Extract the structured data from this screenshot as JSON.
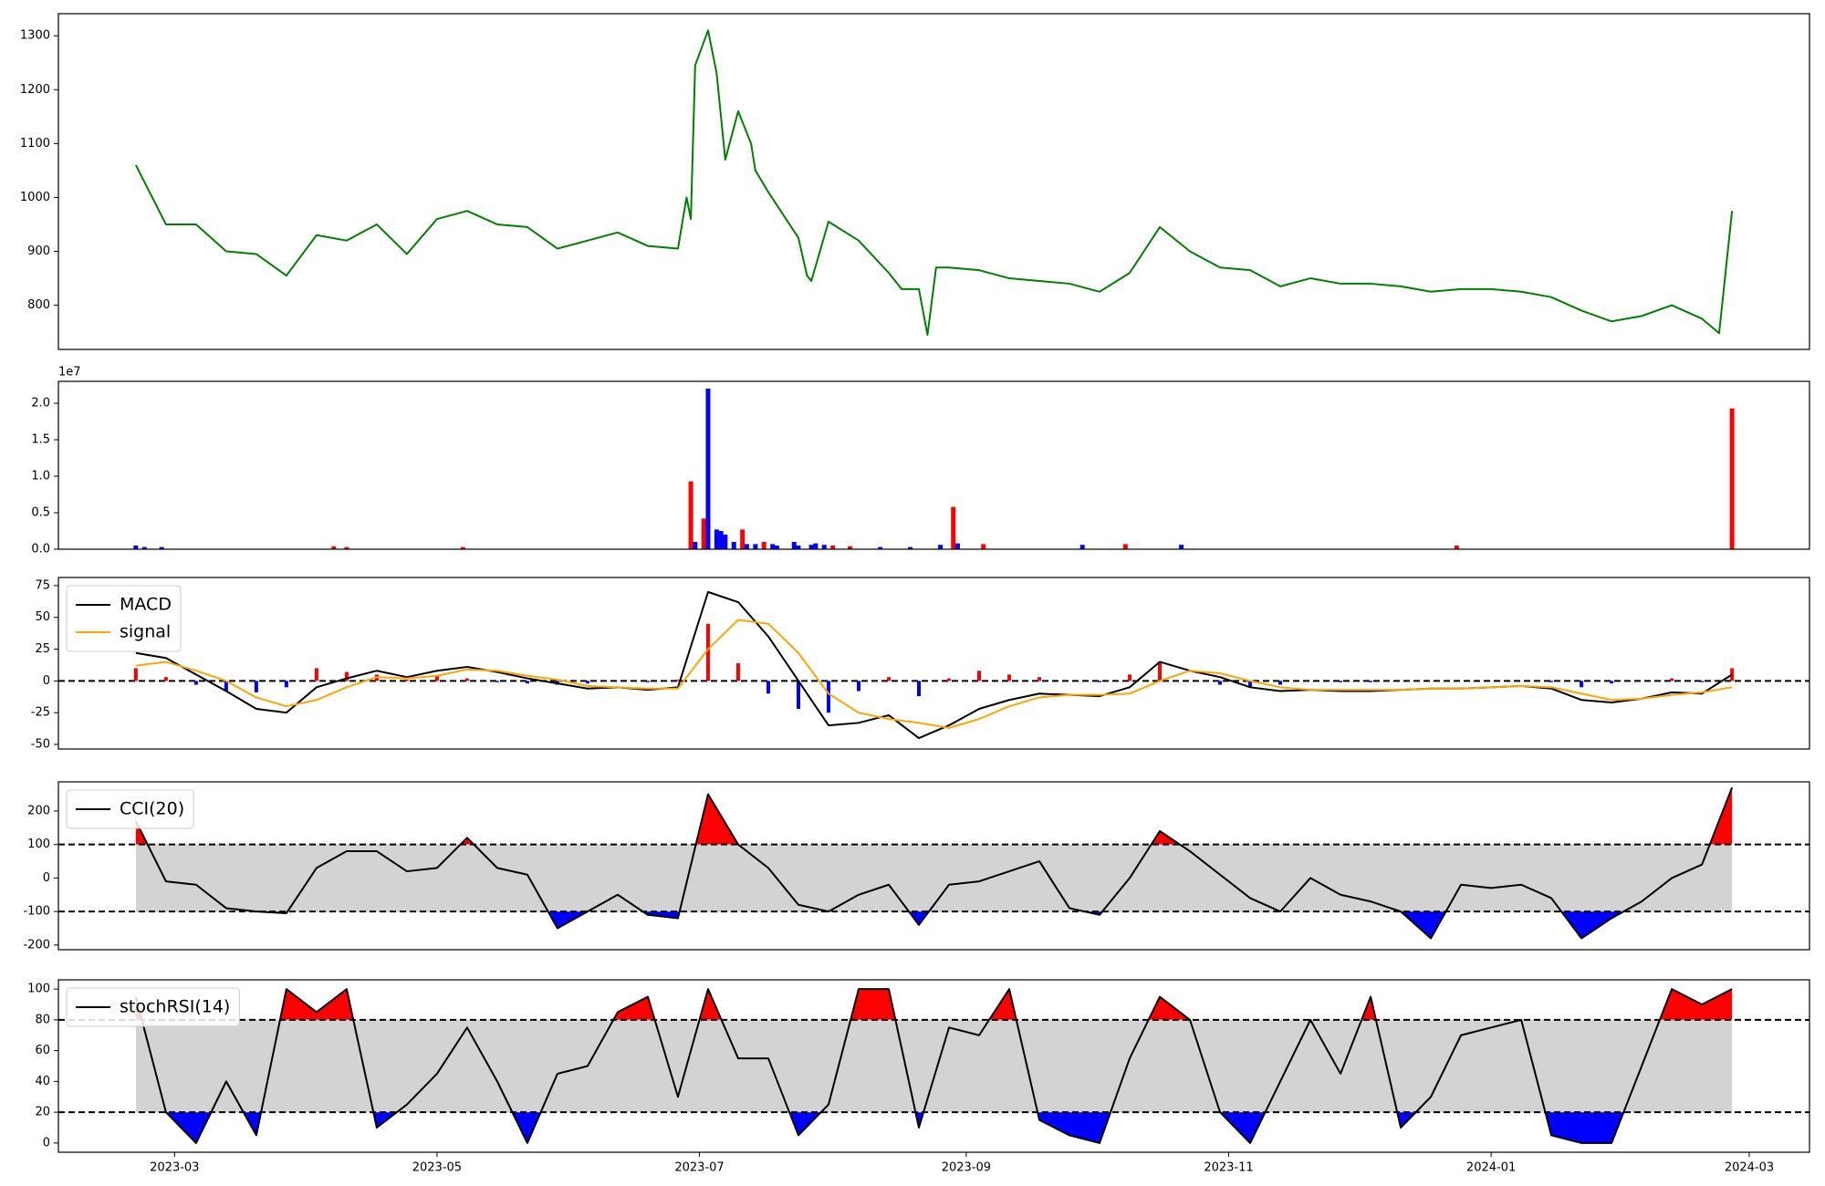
{
  "chart_data": [
    {
      "type": "line",
      "xlim": [
        "2023-02-02",
        "2024-03-15"
      ],
      "ylim": [
        718,
        1341
      ],
      "yticks": [
        800,
        900,
        1000,
        1100,
        1200,
        1300
      ],
      "x": [
        "2023-02-20",
        "2023-02-27",
        "2023-03-06",
        "2023-03-13",
        "2023-03-20",
        "2023-03-27",
        "2023-04-03",
        "2023-04-10",
        "2023-04-17",
        "2023-04-24",
        "2023-05-01",
        "2023-05-08",
        "2023-05-15",
        "2023-05-22",
        "2023-05-29",
        "2023-06-05",
        "2023-06-12",
        "2023-06-19",
        "2023-06-26",
        "2023-06-28",
        "2023-06-29",
        "2023-06-30",
        "2023-07-03",
        "2023-07-05",
        "2023-07-07",
        "2023-07-10",
        "2023-07-13",
        "2023-07-14",
        "2023-07-17",
        "2023-07-24",
        "2023-07-26",
        "2023-07-27",
        "2023-07-31",
        "2023-08-07",
        "2023-08-14",
        "2023-08-17",
        "2023-08-21",
        "2023-08-23",
        "2023-08-25",
        "2023-08-28",
        "2023-09-04",
        "2023-09-11",
        "2023-09-18",
        "2023-09-25",
        "2023-10-02",
        "2023-10-09",
        "2023-10-16",
        "2023-10-23",
        "2023-10-30",
        "2023-11-06",
        "2023-11-13",
        "2023-11-20",
        "2023-11-27",
        "2023-12-04",
        "2023-12-11",
        "2023-12-18",
        "2023-12-25",
        "2024-01-01",
        "2024-01-08",
        "2024-01-15",
        "2024-01-22",
        "2024-01-29",
        "2024-02-05",
        "2024-02-12",
        "2024-02-19",
        "2024-02-23",
        "2024-02-26"
      ],
      "series": [
        {
          "color": "green",
          "values": [
            1060,
            950,
            950,
            900,
            895,
            855,
            930,
            920,
            950,
            895,
            960,
            975,
            950,
            945,
            905,
            920,
            935,
            910,
            905,
            1000,
            960,
            1245,
            1310,
            1230,
            1070,
            1160,
            1100,
            1050,
            1010,
            925,
            855,
            845,
            955,
            920,
            860,
            830,
            830,
            745,
            870,
            870,
            865,
            850,
            845,
            840,
            825,
            860,
            945,
            900,
            870,
            865,
            835,
            850,
            840,
            840,
            835,
            825,
            830,
            830,
            825,
            815,
            790,
            770,
            780,
            800,
            775,
            748,
            975
          ]
        }
      ]
    },
    {
      "type": "bar",
      "offset_label": "1e7",
      "xlim": [
        "2023-02-02",
        "2024-03-15"
      ],
      "ylim": [
        0,
        2.3
      ],
      "yticks": [
        {
          "value": 0,
          "label": "0.0"
        },
        {
          "value": 0.5,
          "label": "0.5"
        },
        {
          "value": 1,
          "label": "1.0"
        },
        {
          "value": 1.5,
          "label": "1.5"
        },
        {
          "value": 2,
          "label": "2.0"
        }
      ],
      "x": [
        "2023-02-20",
        "2023-02-22",
        "2023-02-26",
        "2023-04-07",
        "2023-04-10",
        "2023-05-07",
        "2023-06-29",
        "2023-06-30",
        "2023-07-02",
        "2023-07-03",
        "2023-07-05",
        "2023-07-06",
        "2023-07-07",
        "2023-07-09",
        "2023-07-11",
        "2023-07-12",
        "2023-07-14",
        "2023-07-16",
        "2023-07-18",
        "2023-07-19",
        "2023-07-23",
        "2023-07-24",
        "2023-07-27",
        "2023-07-28",
        "2023-07-30",
        "2023-08-01",
        "2023-08-05",
        "2023-08-12",
        "2023-08-19",
        "2023-08-26",
        "2023-08-29",
        "2023-08-30",
        "2023-09-05",
        "2023-09-28",
        "2023-10-08",
        "2023-10-21",
        "2023-12-24",
        "2024-02-26"
      ],
      "values": [
        0.05,
        0.03,
        0.03,
        0.04,
        0.03,
        0.03,
        0.93,
        0.1,
        0.42,
        2.2,
        0.27,
        0.25,
        0.2,
        0.1,
        0.27,
        0.07,
        0.07,
        0.1,
        0.07,
        0.05,
        0.1,
        0.05,
        0.06,
        0.08,
        0.06,
        0.05,
        0.04,
        0.03,
        0.03,
        0.06,
        0.58,
        0.08,
        0.07,
        0.06,
        0.07,
        0.06,
        0.05,
        1.93
      ],
      "colors": [
        "blue",
        "blue",
        "blue",
        "red",
        "red",
        "red",
        "red",
        "blue",
        "red",
        "blue",
        "blue",
        "blue",
        "blue",
        "blue",
        "red",
        "blue",
        "blue",
        "red",
        "blue",
        "blue",
        "blue",
        "blue",
        "blue",
        "blue",
        "blue",
        "red",
        "red",
        "blue",
        "blue",
        "blue",
        "red",
        "blue",
        "red",
        "blue",
        "red",
        "blue",
        "red",
        "red"
      ]
    },
    {
      "type": "line",
      "xlim": [
        "2023-02-02",
        "2024-03-15"
      ],
      "ylim": [
        -53.6,
        81.4
      ],
      "yticks": [
        -50,
        -25,
        0,
        25,
        50,
        75
      ],
      "hlines": [
        0
      ],
      "legend": "upper left",
      "x": [
        "2023-02-20",
        "2023-02-27",
        "2023-03-06",
        "2023-03-13",
        "2023-03-20",
        "2023-03-27",
        "2023-04-03",
        "2023-04-10",
        "2023-04-17",
        "2023-04-24",
        "2023-05-01",
        "2023-05-08",
        "2023-05-15",
        "2023-05-22",
        "2023-05-29",
        "2023-06-05",
        "2023-06-12",
        "2023-06-19",
        "2023-06-26",
        "2023-07-03",
        "2023-07-10",
        "2023-07-17",
        "2023-07-24",
        "2023-07-31",
        "2023-08-07",
        "2023-08-14",
        "2023-08-21",
        "2023-08-28",
        "2023-09-04",
        "2023-09-11",
        "2023-09-18",
        "2023-09-25",
        "2023-10-02",
        "2023-10-09",
        "2023-10-16",
        "2023-10-23",
        "2023-10-30",
        "2023-11-06",
        "2023-11-13",
        "2023-11-20",
        "2023-11-27",
        "2023-12-04",
        "2023-12-11",
        "2023-12-18",
        "2023-12-25",
        "2024-01-01",
        "2024-01-08",
        "2024-01-15",
        "2024-01-22",
        "2024-01-29",
        "2024-02-05",
        "2024-02-12",
        "2024-02-19",
        "2024-02-26"
      ],
      "bars": {
        "up_color": "red",
        "down_color": "blue",
        "values": [
          10,
          3,
          -3,
          -8,
          -9,
          -5,
          10,
          7,
          5,
          1,
          4,
          2,
          -1,
          -2,
          -3,
          -2,
          0,
          -1,
          1,
          45,
          14,
          -10,
          -22,
          -25,
          -8,
          3,
          -12,
          2,
          8,
          5,
          3,
          0,
          -1,
          5,
          15,
          0,
          -3,
          -5,
          -3,
          0,
          -1,
          -1,
          0,
          0,
          0,
          0,
          0,
          -1,
          -5,
          -2,
          0,
          2,
          -1,
          10
        ]
      },
      "series": [
        {
          "name": "MACD",
          "color": "black",
          "values": [
            22,
            18,
            5,
            -8,
            -22,
            -25,
            -5,
            2,
            8,
            3,
            8,
            11,
            7,
            2,
            -2,
            -6,
            -5,
            -7,
            -5,
            70,
            62,
            35,
            0,
            -35,
            -33,
            -27,
            -45,
            -35,
            -22,
            -15,
            -10,
            -11,
            -12,
            -5,
            15,
            8,
            3,
            -5,
            -8,
            -7,
            -8,
            -8,
            -7,
            -6,
            -6,
            -5,
            -4,
            -6,
            -15,
            -17,
            -14,
            -9,
            -10,
            5
          ]
        },
        {
          "name": "signal",
          "color": "orange",
          "values": [
            12,
            15,
            8,
            0,
            -13,
            -20,
            -15,
            -5,
            3,
            2,
            4,
            9,
            8,
            4,
            1,
            -4,
            -5,
            -6,
            -6,
            25,
            48,
            45,
            22,
            -10,
            -25,
            -30,
            -33,
            -37,
            -30,
            -20,
            -13,
            -11,
            -11,
            -10,
            0,
            8,
            6,
            0,
            -5,
            -7,
            -7,
            -7,
            -7,
            -6,
            -6,
            -5,
            -4,
            -5,
            -10,
            -15,
            -14,
            -11,
            -9,
            -5
          ]
        }
      ]
    },
    {
      "type": "line",
      "xlim": [
        "2023-02-02",
        "2024-03-15"
      ],
      "ylim": [
        -214,
        287
      ],
      "yticks": [
        -200,
        -100,
        0,
        100,
        200
      ],
      "legend": "upper left",
      "thresholds": [
        -100,
        100
      ],
      "band_color": "#d3d3d3",
      "above_color": "red",
      "below_color": "blue",
      "x": [
        "2023-02-20",
        "2023-02-27",
        "2023-03-06",
        "2023-03-13",
        "2023-03-20",
        "2023-03-27",
        "2023-04-03",
        "2023-04-10",
        "2023-04-17",
        "2023-04-24",
        "2023-05-01",
        "2023-05-08",
        "2023-05-15",
        "2023-05-22",
        "2023-05-29",
        "2023-06-05",
        "2023-06-12",
        "2023-06-19",
        "2023-06-26",
        "2023-07-03",
        "2023-07-10",
        "2023-07-17",
        "2023-07-24",
        "2023-07-31",
        "2023-08-07",
        "2023-08-14",
        "2023-08-21",
        "2023-08-28",
        "2023-09-04",
        "2023-09-11",
        "2023-09-18",
        "2023-09-25",
        "2023-10-02",
        "2023-10-09",
        "2023-10-16",
        "2023-10-23",
        "2023-10-30",
        "2023-11-06",
        "2023-11-13",
        "2023-11-20",
        "2023-11-27",
        "2023-12-04",
        "2023-12-11",
        "2023-12-18",
        "2023-12-25",
        "2024-01-01",
        "2024-01-08",
        "2024-01-15",
        "2024-01-22",
        "2024-01-29",
        "2024-02-05",
        "2024-02-12",
        "2024-02-19",
        "2024-02-26"
      ],
      "series": [
        {
          "name": "CCI(20)",
          "color": "black",
          "values": [
            170,
            -10,
            -20,
            -90,
            -100,
            -105,
            30,
            80,
            80,
            20,
            30,
            120,
            30,
            10,
            -150,
            -100,
            -50,
            -110,
            -120,
            250,
            100,
            30,
            -80,
            -100,
            -50,
            -20,
            -140,
            -20,
            -10,
            20,
            50,
            -90,
            -110,
            0,
            140,
            80,
            10,
            -60,
            -100,
            0,
            -50,
            -70,
            -100,
            -180,
            -20,
            -30,
            -20,
            -60,
            -180,
            -120,
            -70,
            0,
            40,
            270
          ]
        }
      ]
    },
    {
      "type": "line",
      "xlim": [
        "2023-02-02",
        "2024-03-15"
      ],
      "ylim": [
        -6,
        106
      ],
      "yticks": [
        0,
        20,
        40,
        60,
        80,
        100
      ],
      "legend": "upper left",
      "xticks": [
        "2023-03",
        "2023-05",
        "2023-07",
        "2023-09",
        "2023-11",
        "2024-01",
        "2024-03"
      ],
      "thresholds": [
        20,
        80
      ],
      "band_color": "#d3d3d3",
      "above_color": "red",
      "below_color": "blue",
      "x": [
        "2023-02-20",
        "2023-02-27",
        "2023-03-06",
        "2023-03-13",
        "2023-03-20",
        "2023-03-27",
        "2023-04-03",
        "2023-04-10",
        "2023-04-17",
        "2023-04-24",
        "2023-05-01",
        "2023-05-08",
        "2023-05-15",
        "2023-05-22",
        "2023-05-29",
        "2023-06-05",
        "2023-06-12",
        "2023-06-19",
        "2023-06-26",
        "2023-07-03",
        "2023-07-10",
        "2023-07-17",
        "2023-07-24",
        "2023-07-31",
        "2023-08-07",
        "2023-08-14",
        "2023-08-21",
        "2023-08-28",
        "2023-09-04",
        "2023-09-11",
        "2023-09-18",
        "2023-09-25",
        "2023-10-02",
        "2023-10-09",
        "2023-10-16",
        "2023-10-23",
        "2023-10-30",
        "2023-11-06",
        "2023-11-13",
        "2023-11-20",
        "2023-11-27",
        "2023-12-04",
        "2023-12-11",
        "2023-12-18",
        "2023-12-25",
        "2024-01-01",
        "2024-01-08",
        "2024-01-15",
        "2024-01-22",
        "2024-01-29",
        "2024-02-05",
        "2024-02-12",
        "2024-02-19",
        "2024-02-26"
      ],
      "series": [
        {
          "name": "stochRSI(14)",
          "color": "black",
          "values": [
            95,
            20,
            0,
            40,
            5,
            100,
            85,
            100,
            10,
            25,
            45,
            75,
            40,
            0,
            45,
            50,
            85,
            95,
            30,
            100,
            55,
            55,
            5,
            25,
            100,
            100,
            10,
            75,
            70,
            100,
            15,
            5,
            0,
            55,
            95,
            80,
            20,
            0,
            40,
            80,
            45,
            95,
            10,
            30,
            70,
            75,
            80,
            5,
            0,
            0,
            50,
            100,
            90,
            100
          ]
        }
      ]
    }
  ]
}
